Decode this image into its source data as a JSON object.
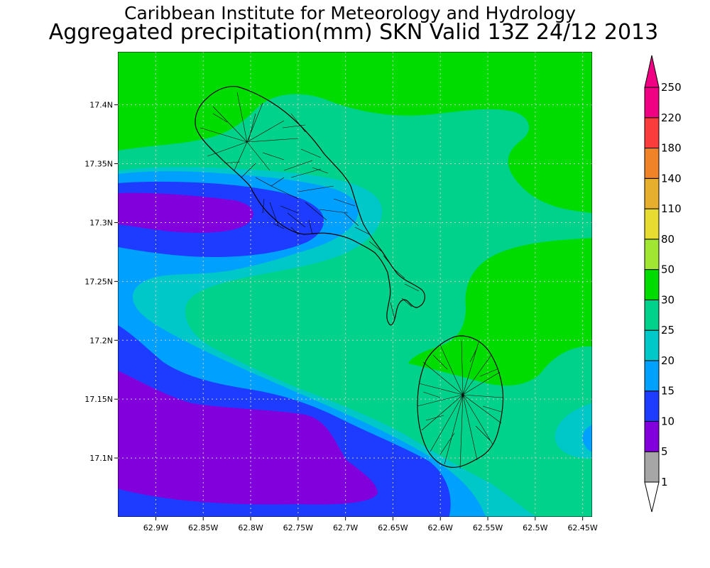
{
  "title": {
    "line1": "Caribbean Institute for Meteorology and Hydrology",
    "line2": "Aggregated precipitation(mm) SKN Valid 13Z 24/12 2013"
  },
  "map": {
    "lon_range": [
      62.94,
      62.44
    ],
    "lat_range": [
      17.05,
      17.445
    ],
    "x_ticks": [
      {
        "value": 62.9,
        "label": "62.9W"
      },
      {
        "value": 62.85,
        "label": "62.85W"
      },
      {
        "value": 62.8,
        "label": "62.8W"
      },
      {
        "value": 62.75,
        "label": "62.75W"
      },
      {
        "value": 62.7,
        "label": "62.7W"
      },
      {
        "value": 62.65,
        "label": "62.65W"
      },
      {
        "value": 62.6,
        "label": "62.6W"
      },
      {
        "value": 62.55,
        "label": "62.55W"
      },
      {
        "value": 62.5,
        "label": "62.5W"
      },
      {
        "value": 62.45,
        "label": "62.45W"
      }
    ],
    "y_ticks": [
      {
        "value": 17.4,
        "label": "17.4N"
      },
      {
        "value": 17.35,
        "label": "17.35N"
      },
      {
        "value": 17.3,
        "label": "17.3N"
      },
      {
        "value": 17.25,
        "label": "17.25N"
      },
      {
        "value": 17.2,
        "label": "17.2N"
      },
      {
        "value": 17.15,
        "label": "17.15N"
      },
      {
        "value": 17.1,
        "label": "17.1N"
      }
    ],
    "grid": true
  },
  "colorbar": {
    "levels": [
      "1",
      "5",
      "10",
      "15",
      "20",
      "25",
      "30",
      "50",
      "80",
      "110",
      "140",
      "180",
      "220",
      "250"
    ],
    "colors": [
      "#a6a6a6",
      "#8200dc",
      "#1e3cff",
      "#00a0ff",
      "#00c8c8",
      "#00d28c",
      "#00dc00",
      "#a0e632",
      "#e6dc32",
      "#e6af2d",
      "#f08228",
      "#fa3c3c",
      "#f00082"
    ],
    "low_cap_color": "#ffffff",
    "high_cap_color": "#f00082"
  },
  "palette": {
    "green": "#00dc00",
    "seagreen": "#00d28c",
    "cyan": "#00c8c8",
    "skyblue": "#00a0ff",
    "blue": "#1e3cff",
    "purple": "#8200dc",
    "grid": "#c8c8c8"
  }
}
